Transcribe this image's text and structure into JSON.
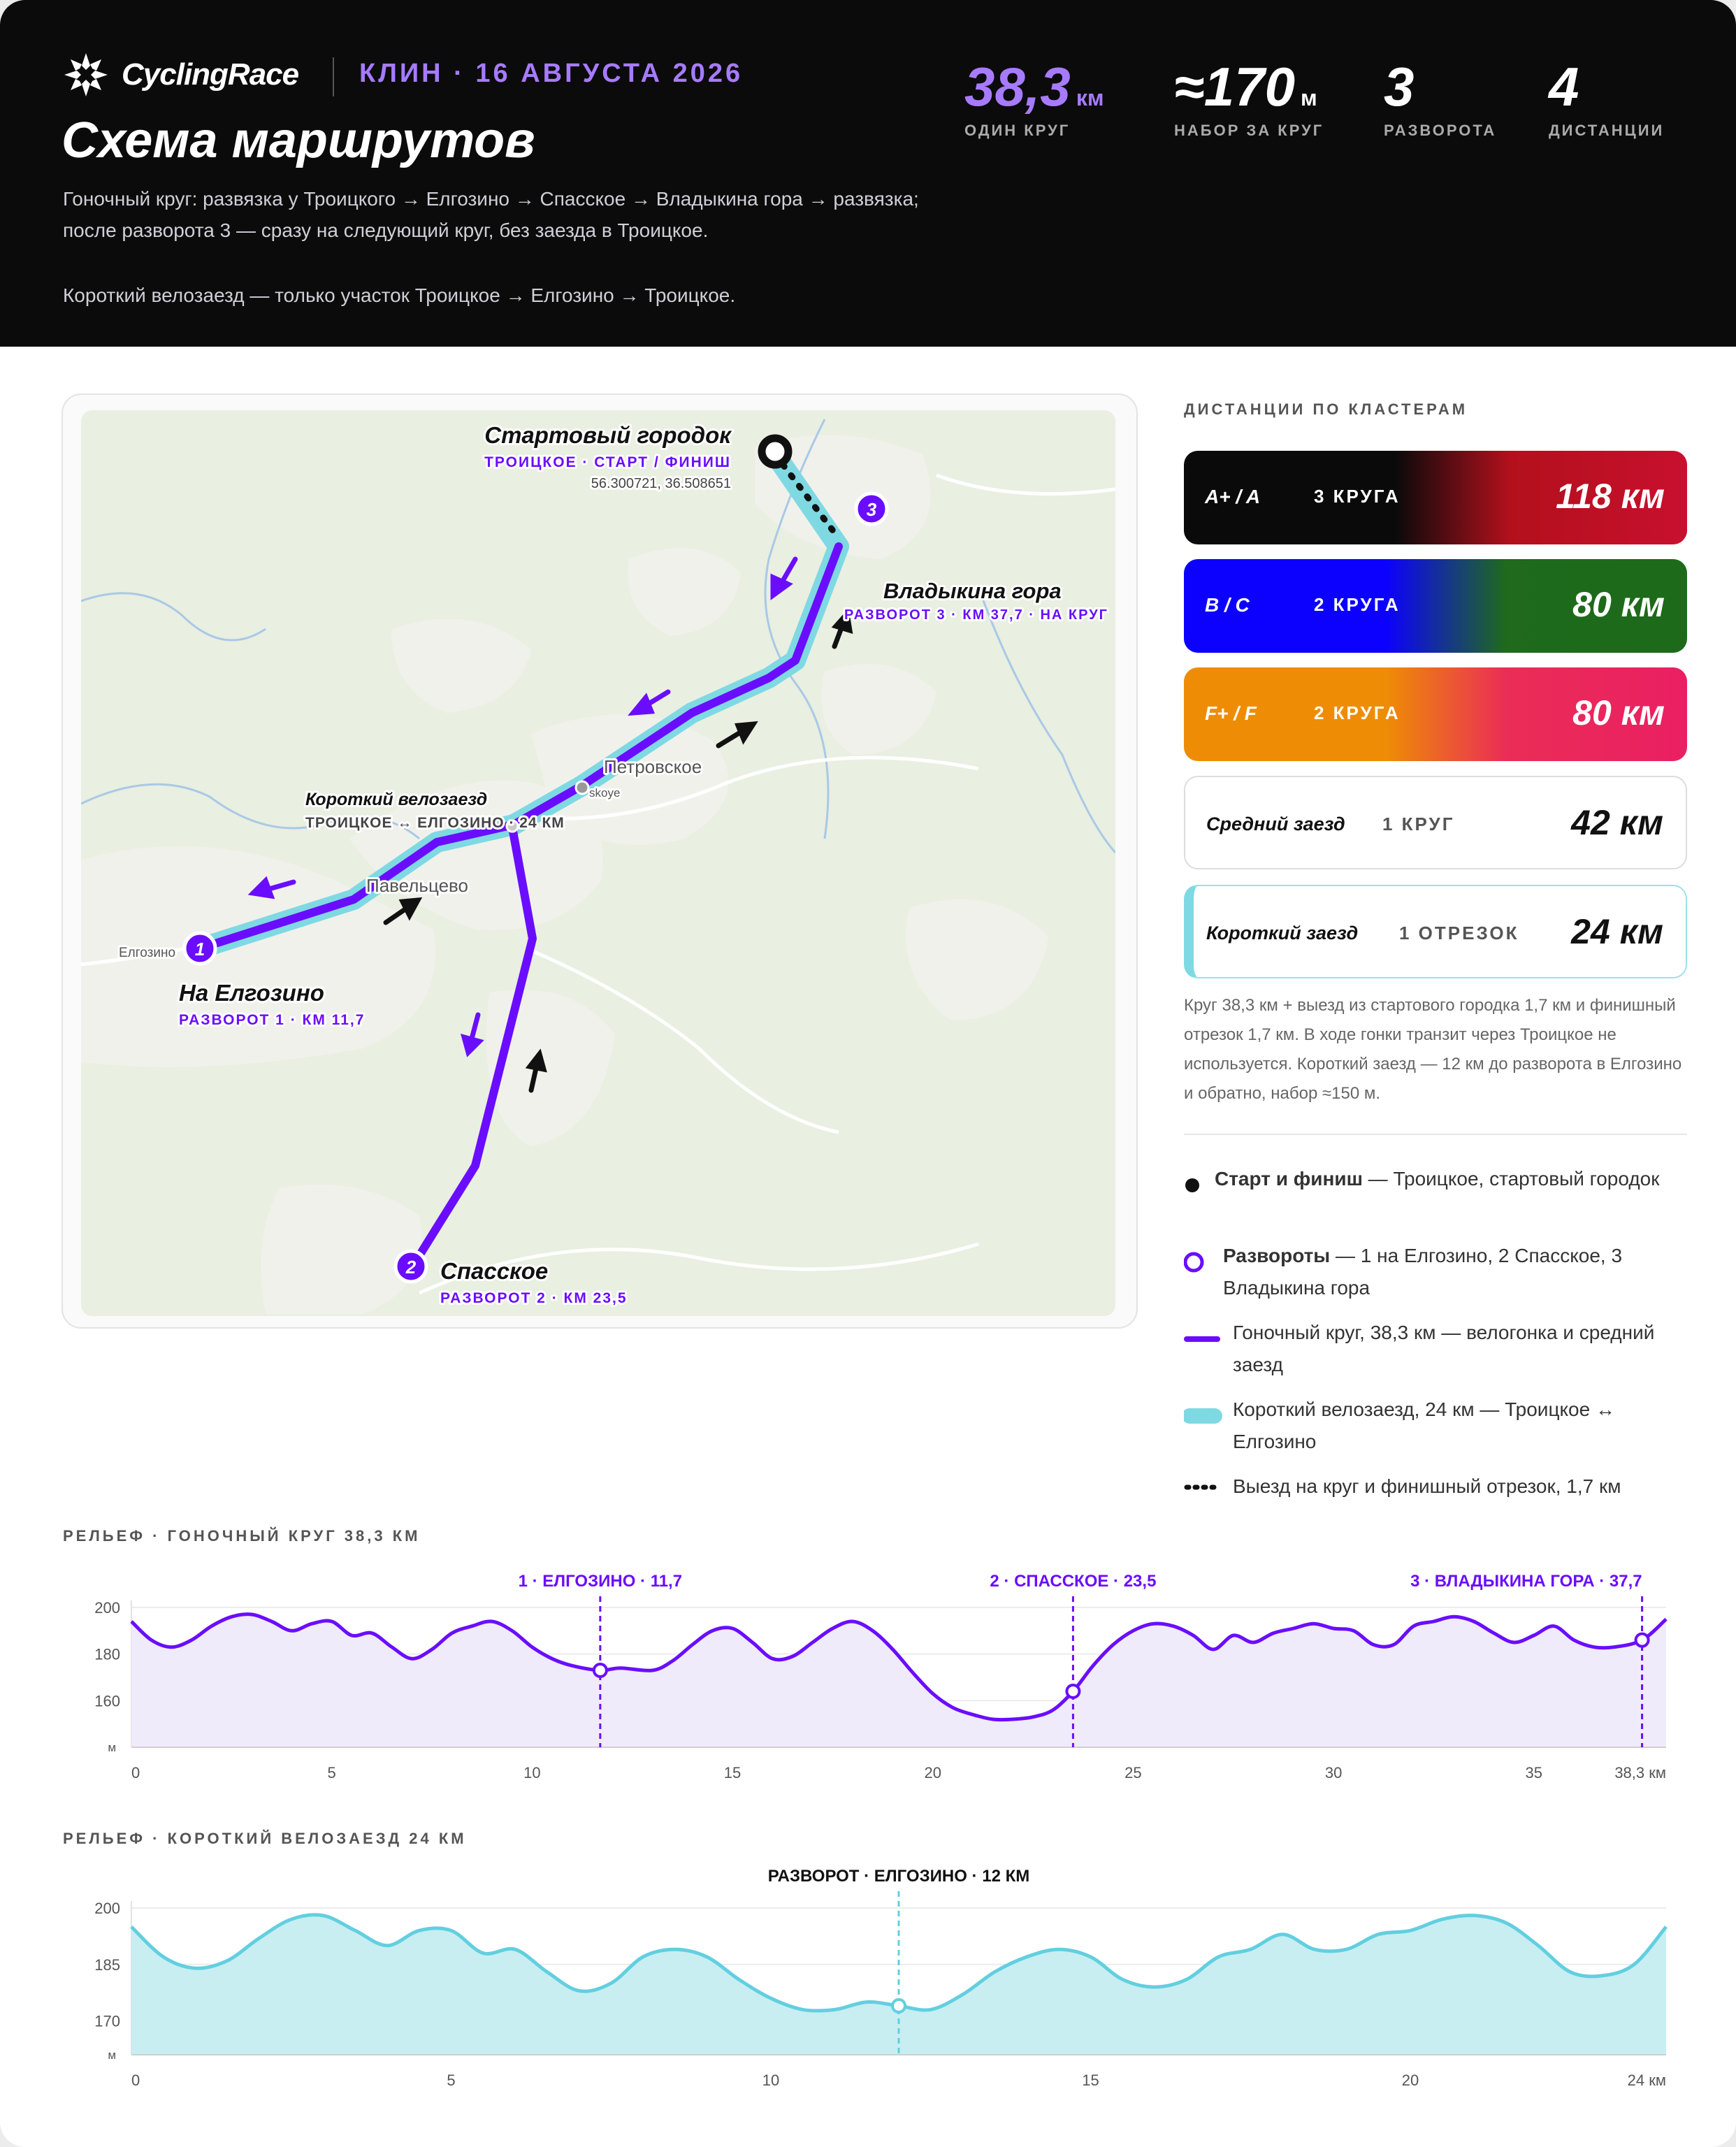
{
  "header": {
    "brand": "CyclingRace",
    "event": "КЛИН · 16 АВГУСТА 2026",
    "title": "Схема маршрутов",
    "desc1": "Гоночный круг: развязка у Троицкого → Елгозино → Спасское → Владыкина гора → развязка; после разворота 3 — сразу на следующий круг, без заезда в Троицкое.",
    "desc2": "Короткий велозаезд — только участок Троицкое → Елгозино → Троицкое.",
    "stats": [
      {
        "value": "38,3",
        "unit": "км",
        "label": "ОДИН КРУГ",
        "color": "#a77bff"
      },
      {
        "value": "≈170",
        "unit": "м",
        "label": "НАБОР ЗА КРУГ",
        "color": "#ffffff"
      },
      {
        "value": "3",
        "unit": "",
        "label": "РАЗВОРОТА",
        "color": "#ffffff"
      },
      {
        "value": "4",
        "unit": "",
        "label": "ДИСТАНЦИИ",
        "color": "#ffffff"
      }
    ]
  },
  "map": {
    "start_title": "Стартовый городок",
    "start_sub": "ТРОИЦКОЕ · СТАРТ / ФИНИШ",
    "start_coords": "56.300721, 36.508651",
    "turn1_name": "На Елгозино",
    "turn1_sub": "РАЗВОРОТ 1 · КМ 11,7",
    "turn2_name": "Спасское",
    "turn2_sub": "РАЗВОРОТ 2 · КМ 23,5",
    "turn3_name": "Владыкина гора",
    "turn3_sub": "РАЗВОРОТ 3 · КМ 37,7 · НА КРУГ",
    "short_title": "Короткий велозаезд",
    "short_sub": "ТРОИЦКОЕ ↔ ЕЛГОЗИНО · 24 КМ",
    "town_petrovskoe": "Петровское",
    "town_petrovskoe_small": "skoye",
    "town_pavelcevo": "Павельцево",
    "town_elgozino": "Елгозино",
    "marker1": "1",
    "marker2": "2",
    "marker3": "3"
  },
  "clusters": {
    "title": "ДИСТАНЦИИ ПО КЛАСТЕРАМ",
    "items": [
      {
        "key": "A+ / A",
        "laps": "3 КРУГА",
        "dist": "118 км"
      },
      {
        "key": "B / C",
        "laps": "2 КРУГА",
        "dist": "80 км"
      },
      {
        "key": "F+ / F",
        "laps": "2 КРУГА",
        "dist": "80 км"
      },
      {
        "key": "Средний заезд",
        "laps": "1 КРУГ",
        "dist": "42 км"
      },
      {
        "key": "Короткий заезд",
        "laps": "1 ОТРЕЗОК",
        "dist": "24 км"
      }
    ],
    "note": "Круг 38,3 км + выезд из стартового городка 1,7 км и финишный отрезок 1,7 км. В ходе гонки транзит через Троицкое не используется. Короткий заезд — 12 км до разворота в Елгозино и обратно, набор ≈150 м."
  },
  "legend": {
    "start_bold": "Старт и финиш",
    "start_rest": " — Троицкое, стартовый городок",
    "turns_bold": "Развороты",
    "turns_rest": " — 1 на Елгозино, 2 Спасское, 3 Владыкина гора",
    "race": "Гоночный круг, 38,3 км — велогонка и средний заезд",
    "short": "Короткий велозаезд, 24 км — Троицкое ↔ Елгозино",
    "transfer": "Выезд на круг и финишный отрезок, 1,7 км"
  },
  "colors": {
    "race": "#6a0dff",
    "short": "#7fd9e3",
    "accent": "#a77bff"
  },
  "elev_race": {
    "title": "РЕЛЬЕФ · ГОНОЧНЫЙ КРУГ 38,3 КМ",
    "unit": "м",
    "x_last_label": "38,3 км",
    "x_ticks": [
      0,
      5,
      10,
      15,
      20,
      25,
      30,
      35,
      38.3
    ],
    "x_tick_labels": [
      "0",
      "5",
      "10",
      "15",
      "20",
      "25",
      "30",
      "35",
      "38,3 км"
    ],
    "y_ticks": [
      160,
      180,
      200
    ],
    "xlim": [
      0,
      38.3
    ],
    "ylim": [
      140,
      200
    ],
    "markers": [
      {
        "x": 11.7,
        "label": "1 · ЕЛГОЗИНО · 11,7"
      },
      {
        "x": 23.5,
        "label": "2 · СПАССКОЕ · 23,5"
      },
      {
        "x": 37.7,
        "label": "3 · ВЛАДЫКИНА ГОРА · 37,7"
      }
    ],
    "x": [
      0,
      0.5,
      1,
      1.5,
      2,
      2.5,
      3,
      3.5,
      4,
      4.5,
      5,
      5.5,
      6,
      6.5,
      7,
      7.5,
      8,
      8.5,
      9,
      9.5,
      10,
      10.5,
      11,
      11.7,
      12.2,
      13,
      13.5,
      14,
      14.5,
      15,
      15.5,
      16,
      16.5,
      17,
      17.5,
      18,
      18.5,
      19,
      19.5,
      20,
      20.5,
      21,
      21.5,
      22,
      22.5,
      23,
      23.5,
      24,
      24.5,
      25,
      25.5,
      26,
      26.5,
      27,
      27.5,
      28,
      28.5,
      29,
      29.5,
      30,
      30.5,
      31,
      31.5,
      32,
      32.5,
      33,
      33.5,
      34,
      34.5,
      35,
      35.5,
      36,
      36.5,
      37,
      37.7,
      38.3
    ],
    "y": [
      194,
      186,
      183,
      186,
      192,
      196,
      197,
      194,
      190,
      193,
      194,
      188,
      189,
      183,
      178,
      182,
      189,
      192,
      194,
      190,
      183,
      178,
      175,
      173,
      174,
      173,
      177,
      184,
      190,
      191,
      185,
      178,
      179,
      185,
      191,
      194,
      190,
      182,
      172,
      163,
      157,
      154,
      152,
      152,
      153,
      156,
      164,
      175,
      184,
      190,
      193,
      192,
      188,
      182,
      188,
      185,
      189,
      191,
      193,
      191,
      190,
      184,
      184,
      192,
      194,
      196,
      194,
      189,
      185,
      188,
      192,
      186,
      183,
      183,
      186,
      195
    ]
  },
  "elev_short": {
    "title": "РЕЛЬЕФ · КОРОТКИЙ ВЕЛОЗАЕЗД 24 КМ",
    "unit": "м",
    "x_ticks": [
      0,
      5,
      10,
      15,
      20,
      24
    ],
    "x_tick_labels": [
      "0",
      "5",
      "10",
      "15",
      "20",
      "24 км"
    ],
    "y_ticks": [
      170,
      185,
      200
    ],
    "xlim": [
      0,
      24
    ],
    "ylim": [
      161,
      200
    ],
    "markers": [
      {
        "x": 12,
        "label": "РАЗВОРОТ · ЕЛГОЗИНО · 12 КМ"
      }
    ],
    "x": [
      0,
      0.5,
      1,
      1.5,
      2,
      2.5,
      3,
      3.5,
      4,
      4.5,
      5,
      5.5,
      6,
      6.5,
      7,
      7.5,
      8,
      8.5,
      9,
      9.5,
      10,
      10.5,
      11,
      11.5,
      12,
      12.5,
      13,
      13.5,
      14,
      14.5,
      15,
      15.5,
      16,
      16.5,
      17,
      17.5,
      18,
      18.5,
      19,
      19.5,
      20,
      20.5,
      21,
      21.5,
      22,
      22.5,
      23,
      23.5,
      24
    ],
    "y": [
      195,
      187,
      184,
      186,
      192,
      197,
      198,
      194,
      190,
      194,
      194,
      188,
      189,
      183,
      178,
      180,
      187,
      189,
      187,
      181,
      176,
      173,
      173,
      175,
      174,
      173,
      177,
      183,
      187,
      189,
      187,
      181,
      179,
      181,
      187,
      189,
      193,
      189,
      189,
      193,
      194,
      197,
      198,
      196,
      190,
      183,
      182,
      185,
      195
    ]
  }
}
